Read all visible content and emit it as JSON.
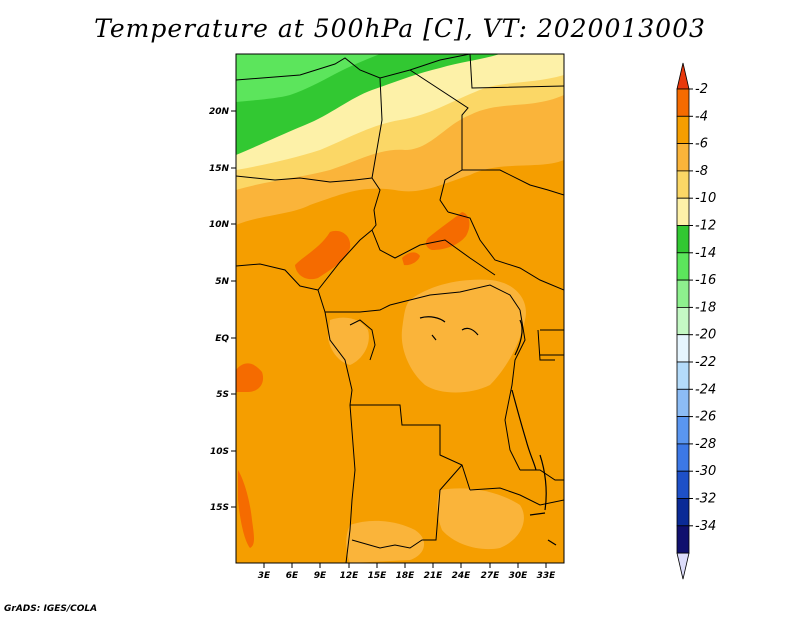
{
  "title": "Temperature at 500hPa [C], VT: 2020013003",
  "credit": "GrADS: IGES/COLA",
  "latitude_labels": [
    "20N",
    "15N",
    "10N",
    "5N",
    "EQ",
    "5S",
    "10S",
    "15S"
  ],
  "longitude_labels": [
    "3E",
    "6E",
    "9E",
    "12E",
    "15E",
    "18E",
    "21E",
    "24E",
    "27E",
    "30E",
    "33E"
  ],
  "colorbar": {
    "labels": [
      "-2",
      "-4",
      "-6",
      "-8",
      "-10",
      "-12",
      "-14",
      "-16",
      "-18",
      "-20",
      "-22",
      "-24",
      "-26",
      "-28",
      "-30",
      "-32",
      "-34"
    ],
    "colors": [
      "#e8380c",
      "#f56b00",
      "#f59e00",
      "#fab43a",
      "#fbd766",
      "#fdf1a8",
      "#32c832",
      "#5ce55c",
      "#8ef08e",
      "#c4f8c4",
      "#e6f5fe",
      "#b4dbfa",
      "#8cbcf5",
      "#5a96f0",
      "#3c78e6",
      "#1e50c8",
      "#0a2a96",
      "#10106e"
    ],
    "top_triangle_color": "#e8380c",
    "bottom_triangle_color": "#dcdcfa"
  }
}
